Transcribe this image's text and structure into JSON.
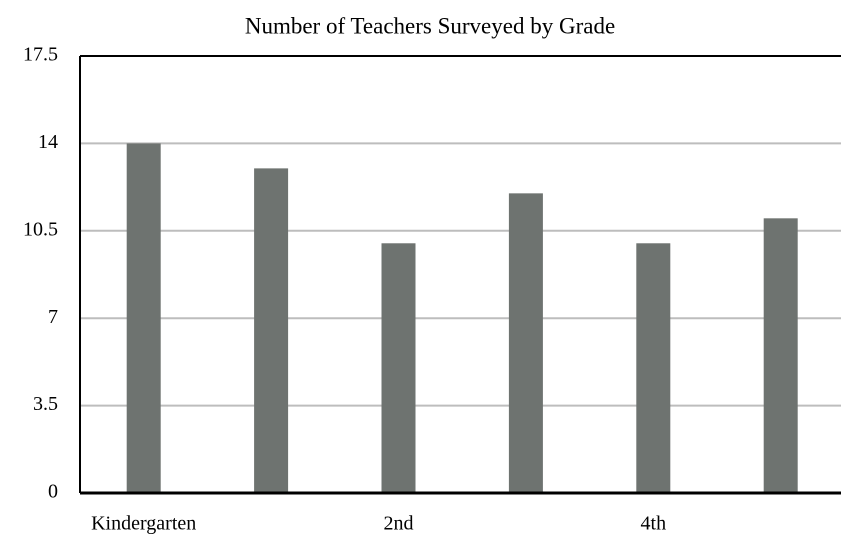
{
  "chart_data": {
    "type": "bar",
    "title": "Number of Teachers Surveyed by Grade",
    "categories": [
      "Kindergarten",
      null,
      "2nd",
      null,
      "4th",
      null
    ],
    "values": [
      14,
      13,
      10,
      12,
      10,
      11
    ],
    "color": "#6e7370",
    "ylim": [
      0,
      17.5
    ],
    "yticks": [
      0,
      3.5,
      7,
      10.5,
      14,
      17.5
    ],
    "grid": true
  }
}
